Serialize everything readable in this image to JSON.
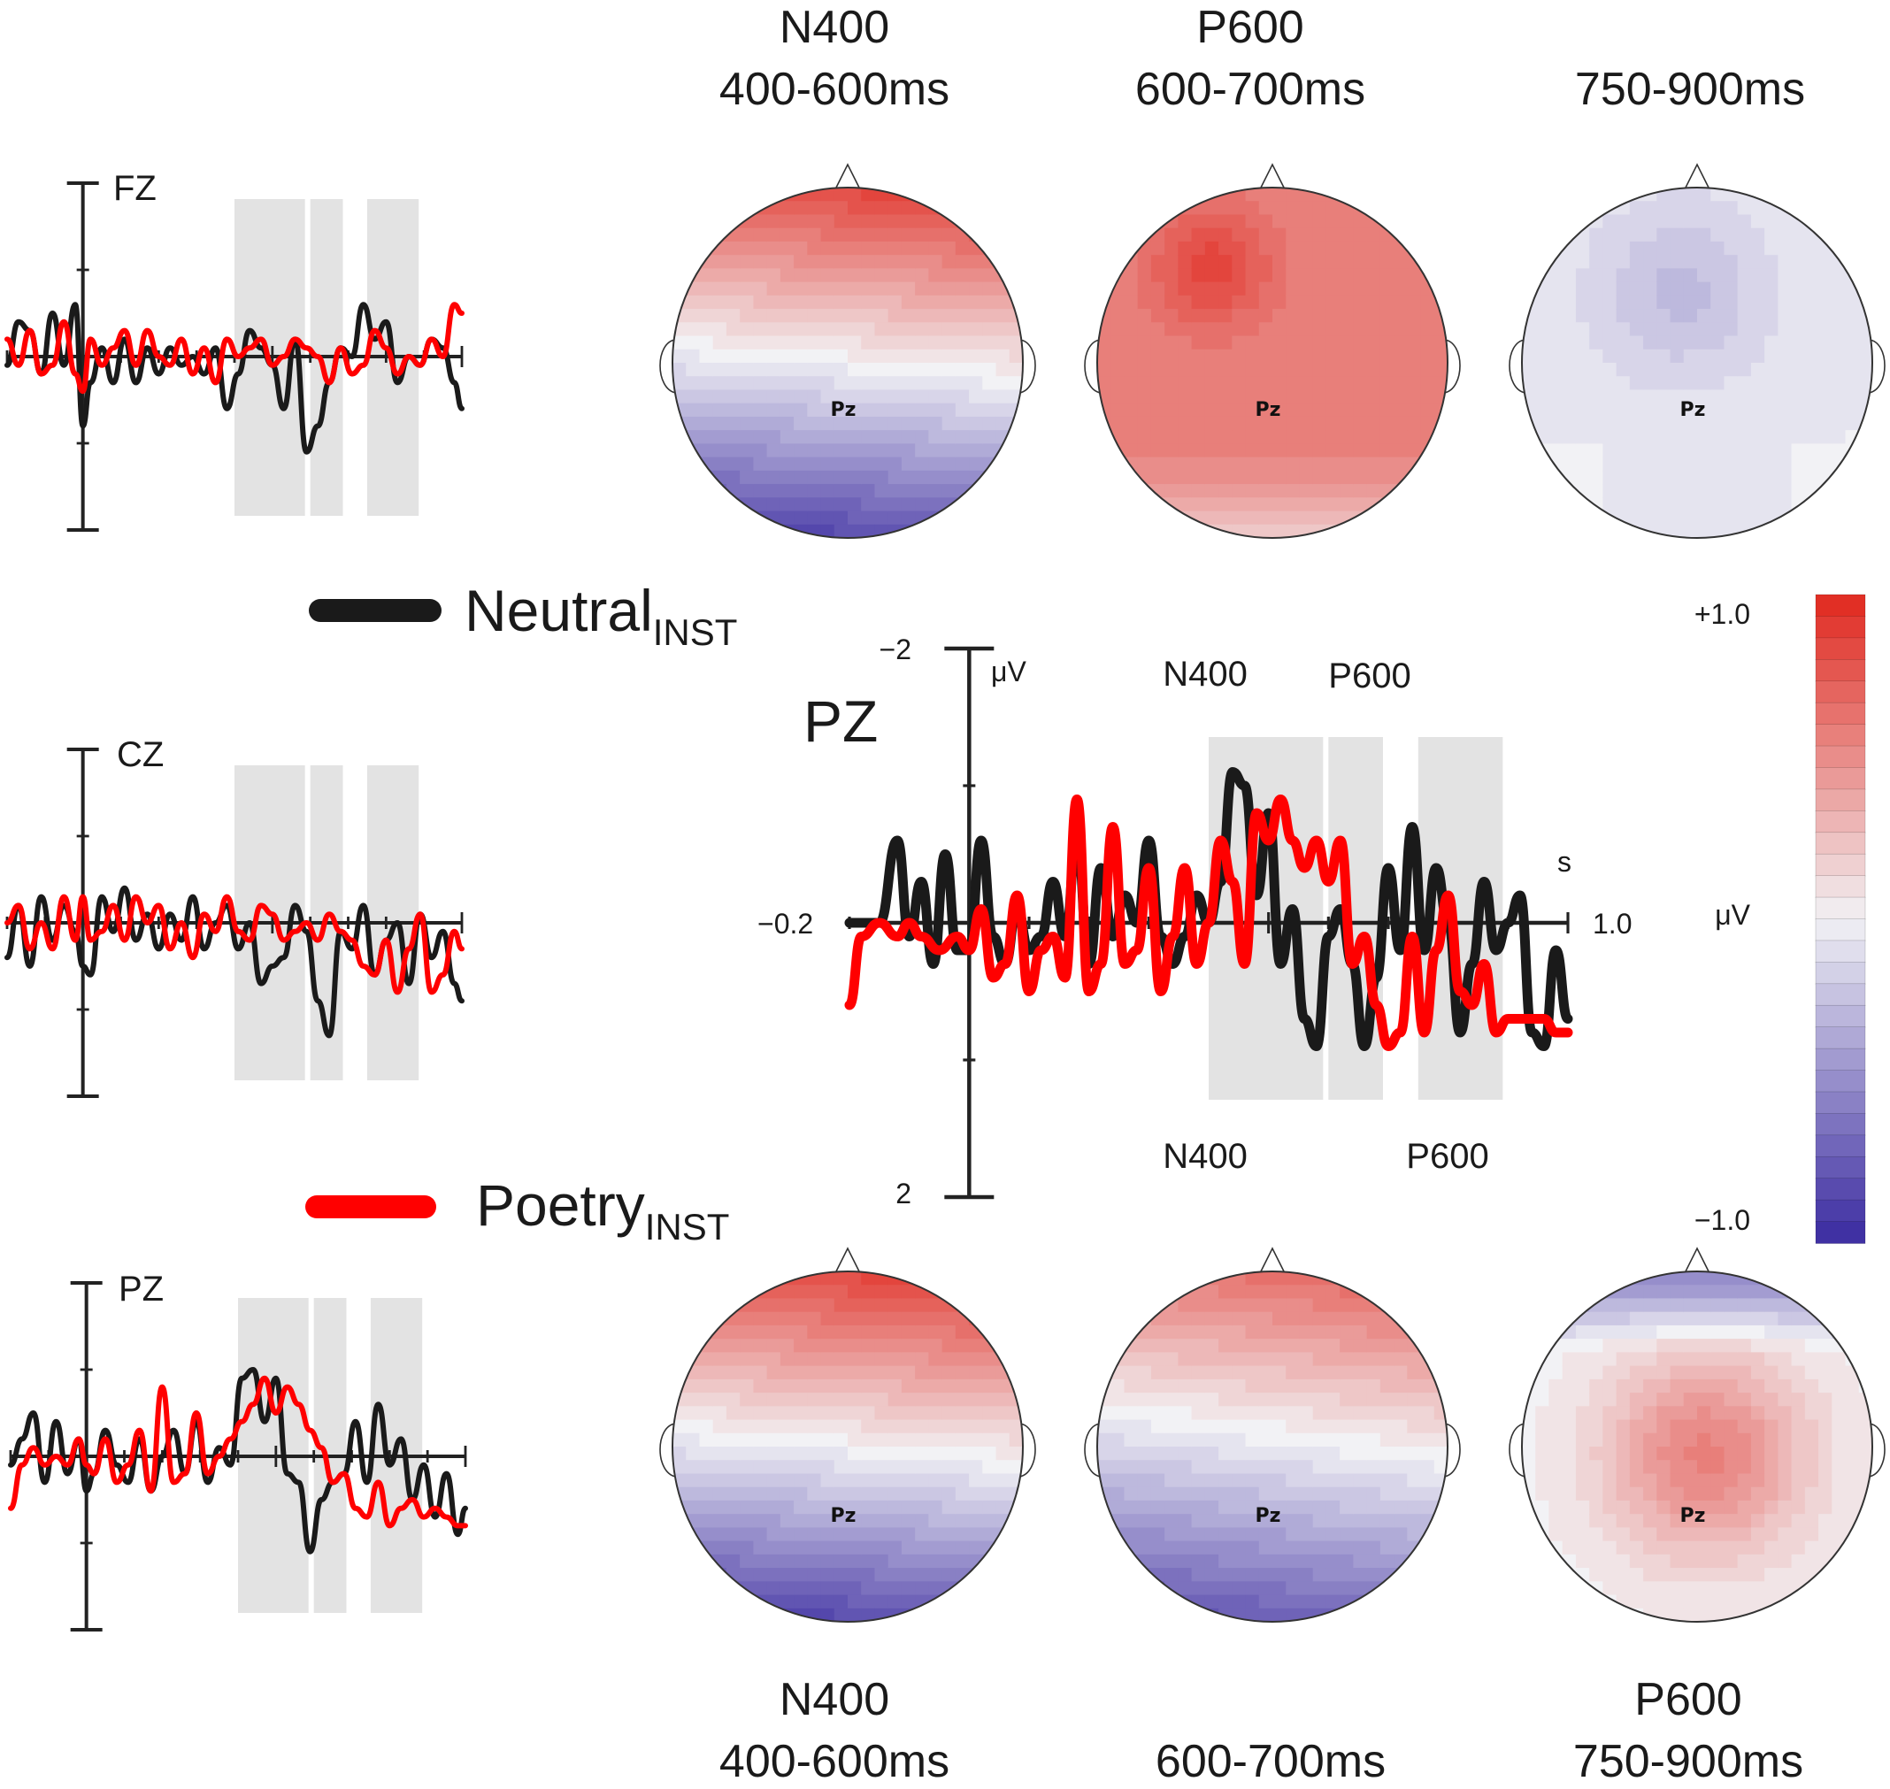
{
  "colors": {
    "neutral": "#1a1a1a",
    "poetry": "#ff0000",
    "window_shade": "#e3e3e3",
    "scale_pos": "#e0281e",
    "scale_neg": "#3a2aa0",
    "scale_mid": "#f2f2f5"
  },
  "top_maps": [
    {
      "component": "N400",
      "window": "400-600ms",
      "label_pz": "Pz",
      "map_type": "anterior-positive"
    },
    {
      "component": "P600",
      "window": "600-700ms",
      "label_pz": "Pz",
      "map_type": "broad-positive"
    },
    {
      "component": "",
      "window": "750-900ms",
      "label_pz": "Pz",
      "map_type": "weak-negative"
    }
  ],
  "bottom_maps": [
    {
      "component": "N400",
      "window": "400-600ms",
      "label_pz": "Pz",
      "map_type": "anterior-positive"
    },
    {
      "component": "",
      "window": "600-700ms",
      "label_pz": "Pz",
      "map_type": "mild-anterior"
    },
    {
      "component": "P600",
      "window": "750-900ms",
      "label_pz": "Pz",
      "map_type": "central-positive"
    }
  ],
  "legend": {
    "neutral": {
      "main": "Neutral",
      "sub": "INST"
    },
    "poetry": {
      "main": "Poetry",
      "sub": "INST"
    }
  },
  "colorbar": {
    "max_label": "+1.0",
    "min_label": "−1.0",
    "unit": "μV",
    "range": [
      -1.0,
      1.0
    ],
    "steps": 30
  },
  "chart_data": [
    {
      "type": "line",
      "name": "Pz (enlarged)",
      "title": "PZ",
      "xlabel": "s",
      "ylabel": "μV",
      "x_start_label": "−0.2",
      "x_end_label": "1.0",
      "y_top_label": "−2",
      "y_bottom_label": "2",
      "xlim": [
        -0.2,
        1.0
      ],
      "ylim": [
        -2,
        2
      ],
      "y_axis": "negative up",
      "windows": [
        [
          0.4,
          0.6
        ],
        [
          0.6,
          0.7
        ],
        [
          0.75,
          0.9
        ]
      ],
      "window_labels_top": [
        "N400",
        "P600"
      ],
      "window_labels_bottom": [
        "N400",
        "P600"
      ],
      "series": [
        {
          "name": "Neutral INST",
          "x": [
            -0.2,
            -0.15,
            -0.12,
            -0.1,
            -0.08,
            -0.06,
            -0.04,
            -0.02,
            0,
            0.02,
            0.04,
            0.06,
            0.08,
            0.1,
            0.12,
            0.14,
            0.16,
            0.18,
            0.2,
            0.22,
            0.24,
            0.26,
            0.28,
            0.3,
            0.32,
            0.34,
            0.36,
            0.38,
            0.4,
            0.42,
            0.44,
            0.46,
            0.48,
            0.5,
            0.52,
            0.54,
            0.56,
            0.58,
            0.6,
            0.62,
            0.64,
            0.66,
            0.68,
            0.7,
            0.72,
            0.74,
            0.76,
            0.78,
            0.8,
            0.82,
            0.84,
            0.86,
            0.88,
            0.9,
            0.92,
            0.94,
            0.96,
            0.98,
            1.0
          ],
          "values": [
            0,
            0,
            -0.6,
            0.1,
            -0.3,
            0.3,
            -0.5,
            0.2,
            0.2,
            -0.6,
            0.1,
            0.3,
            -0.1,
            0.2,
            0.1,
            -0.3,
            0.1,
            -0.6,
            0.3,
            -0.4,
            0.1,
            -0.2,
            0,
            -0.6,
            0.1,
            0.3,
            0.1,
            -0.2,
            0,
            -0.3,
            -1.1,
            -1.0,
            -0.2,
            -0.8,
            0.3,
            -0.1,
            0.7,
            0.9,
            0.1,
            -0.1,
            0.3,
            0.9,
            0.4,
            -0.4,
            0.2,
            -0.7,
            0.2,
            -0.4,
            0,
            0.8,
            0.3,
            -0.3,
            0.2,
            0,
            -0.2,
            0.8,
            0.9,
            0.2,
            0.7
          ]
        },
        {
          "name": "Poetry INST",
          "x": [
            -0.2,
            -0.18,
            -0.15,
            -0.12,
            -0.1,
            -0.08,
            -0.05,
            -0.02,
            0,
            0.02,
            0.04,
            0.06,
            0.08,
            0.1,
            0.12,
            0.14,
            0.16,
            0.18,
            0.2,
            0.22,
            0.24,
            0.26,
            0.28,
            0.3,
            0.32,
            0.34,
            0.36,
            0.38,
            0.4,
            0.42,
            0.44,
            0.46,
            0.48,
            0.5,
            0.52,
            0.54,
            0.56,
            0.58,
            0.6,
            0.62,
            0.64,
            0.66,
            0.68,
            0.7,
            0.72,
            0.74,
            0.76,
            0.78,
            0.8,
            0.82,
            0.84,
            0.86,
            0.88,
            0.9,
            0.92,
            0.94,
            0.96,
            0.98,
            1.0
          ],
          "values": [
            0.6,
            0.1,
            0.0,
            0.1,
            0.0,
            0.1,
            0.2,
            0.1,
            0.2,
            -0.1,
            0.4,
            0.3,
            -0.2,
            0.5,
            0.2,
            0.1,
            0.4,
            -0.9,
            0.5,
            0.3,
            -0.7,
            0.3,
            0.2,
            -0.4,
            0.5,
            0.1,
            -0.4,
            0.3,
            0.0,
            -0.6,
            -0.3,
            0.3,
            -0.8,
            -0.6,
            -0.9,
            -0.6,
            -0.4,
            -0.6,
            -0.3,
            -0.6,
            0.3,
            0.1,
            0.6,
            0.9,
            0.8,
            0.1,
            0.8,
            0.2,
            -0.2,
            0.5,
            0.6,
            0.3,
            0.8,
            0.7,
            0.7,
            0.7,
            0.7,
            0.8,
            0.8
          ]
        }
      ]
    },
    {
      "type": "line",
      "name": "Fz",
      "title": "FZ",
      "xlim": [
        -0.2,
        1.0
      ],
      "ylim": [
        -2,
        2
      ],
      "windows": [
        [
          0.4,
          0.6
        ],
        [
          0.6,
          0.7
        ],
        [
          0.75,
          0.9
        ]
      ],
      "series": [
        {
          "name": "Neutral INST",
          "x": [
            -0.2,
            -0.17,
            -0.14,
            -0.11,
            -0.08,
            -0.05,
            -0.02,
            0,
            0.02,
            0.05,
            0.08,
            0.11,
            0.14,
            0.17,
            0.2,
            0.23,
            0.26,
            0.29,
            0.32,
            0.35,
            0.38,
            0.41,
            0.44,
            0.47,
            0.5,
            0.53,
            0.56,
            0.59,
            0.62,
            0.65,
            0.68,
            0.71,
            0.74,
            0.77,
            0.8,
            0.83,
            0.86,
            0.89,
            0.92,
            0.95,
            0.98,
            1.0
          ],
          "values": [
            0.1,
            -0.4,
            -0.3,
            0.2,
            -0.5,
            0.1,
            -0.6,
            0.8,
            0.3,
            -0.1,
            0.3,
            -0.2,
            0.3,
            -0.1,
            0.2,
            -0.1,
            0.1,
            0.0,
            0.2,
            -0.1,
            0.6,
            0.2,
            -0.3,
            -0.1,
            0.1,
            0.6,
            -0.2,
            1.1,
            0.8,
            0.3,
            -0.1,
            0.0,
            -0.6,
            -0.2,
            -0.4,
            0.3,
            0.0,
            0.1,
            -0.2,
            -0.1,
            0.3,
            0.6
          ]
        },
        {
          "name": "Poetry INST",
          "x": [
            -0.2,
            -0.17,
            -0.14,
            -0.11,
            -0.08,
            -0.05,
            -0.02,
            0,
            0.02,
            0.05,
            0.08,
            0.11,
            0.14,
            0.17,
            0.2,
            0.23,
            0.26,
            0.29,
            0.32,
            0.35,
            0.38,
            0.41,
            0.44,
            0.47,
            0.5,
            0.53,
            0.56,
            0.59,
            0.62,
            0.65,
            0.68,
            0.71,
            0.74,
            0.77,
            0.8,
            0.83,
            0.86,
            0.89,
            0.92,
            0.95,
            0.98,
            1.0
          ],
          "values": [
            -0.2,
            0.1,
            -0.3,
            0.2,
            0.1,
            -0.4,
            0.2,
            0.4,
            -0.2,
            0.1,
            -0.1,
            -0.3,
            0.1,
            -0.3,
            0.0,
            0.1,
            -0.2,
            0.2,
            -0.1,
            0.3,
            -0.2,
            0.0,
            -0.1,
            -0.2,
            0.1,
            0.0,
            -0.2,
            -0.1,
            0.0,
            0.3,
            -0.1,
            0.2,
            0.1,
            -0.3,
            -0.1,
            0.2,
            0.0,
            0.1,
            -0.2,
            0.0,
            -0.6,
            -0.5
          ]
        }
      ]
    },
    {
      "type": "line",
      "name": "Cz",
      "title": "CZ",
      "xlim": [
        -0.2,
        1.0
      ],
      "ylim": [
        -2,
        2
      ],
      "windows": [
        [
          0.4,
          0.6
        ],
        [
          0.6,
          0.7
        ],
        [
          0.75,
          0.9
        ]
      ],
      "series": [
        {
          "name": "Neutral INST",
          "x": [
            -0.2,
            -0.17,
            -0.14,
            -0.11,
            -0.08,
            -0.05,
            -0.02,
            0,
            0.02,
            0.05,
            0.08,
            0.11,
            0.14,
            0.17,
            0.2,
            0.23,
            0.26,
            0.29,
            0.32,
            0.35,
            0.38,
            0.41,
            0.44,
            0.47,
            0.5,
            0.53,
            0.56,
            0.59,
            0.62,
            0.65,
            0.68,
            0.71,
            0.74,
            0.77,
            0.8,
            0.83,
            0.86,
            0.89,
            0.92,
            0.95,
            0.98,
            1.0
          ],
          "values": [
            0.4,
            -0.2,
            0.5,
            -0.3,
            0.2,
            -0.2,
            0.1,
            0.5,
            0.6,
            -0.3,
            0.1,
            -0.4,
            0.2,
            -0.1,
            0.3,
            -0.1,
            0.2,
            -0.3,
            0.3,
            0.0,
            -0.2,
            0.3,
            0.0,
            0.7,
            0.5,
            0.4,
            -0.2,
            0.1,
            0.9,
            1.3,
            0.1,
            0.3,
            -0.2,
            0.6,
            0.2,
            0.0,
            0.7,
            -0.1,
            0.4,
            0.1,
            0.7,
            0.9
          ]
        },
        {
          "name": "Poetry INST",
          "x": [
            -0.2,
            -0.17,
            -0.14,
            -0.11,
            -0.08,
            -0.05,
            -0.02,
            0,
            0.02,
            0.05,
            0.08,
            0.11,
            0.14,
            0.17,
            0.2,
            0.23,
            0.26,
            0.29,
            0.32,
            0.35,
            0.38,
            0.41,
            0.44,
            0.47,
            0.5,
            0.53,
            0.56,
            0.59,
            0.62,
            0.65,
            0.68,
            0.71,
            0.74,
            0.77,
            0.8,
            0.83,
            0.86,
            0.89,
            0.92,
            0.95,
            0.98,
            1.0
          ],
          "values": [
            0.0,
            -0.2,
            0.3,
            0.0,
            0.3,
            -0.3,
            0.2,
            -0.3,
            0.2,
            0.1,
            -0.2,
            0.2,
            -0.3,
            0.0,
            -0.2,
            0.3,
            0.0,
            0.4,
            -0.1,
            0.1,
            -0.3,
            0.1,
            0.2,
            -0.2,
            -0.1,
            0.2,
            0.1,
            0.0,
            0.2,
            -0.1,
            0.1,
            0.2,
            0.5,
            0.6,
            0.2,
            0.8,
            0.3,
            -0.1,
            0.8,
            0.6,
            0.1,
            0.3
          ]
        }
      ]
    },
    {
      "type": "line",
      "name": "Pz (small)",
      "title": "PZ",
      "xlim": [
        -0.2,
        1.0
      ],
      "ylim": [
        -2,
        2
      ],
      "windows": [
        [
          0.4,
          0.6
        ],
        [
          0.6,
          0.7
        ],
        [
          0.75,
          0.9
        ]
      ],
      "series": [
        {
          "name": "Neutral INST",
          "x": [
            -0.2,
            -0.17,
            -0.14,
            -0.11,
            -0.08,
            -0.05,
            -0.02,
            0,
            0.02,
            0.05,
            0.08,
            0.11,
            0.14,
            0.17,
            0.2,
            0.23,
            0.26,
            0.29,
            0.32,
            0.35,
            0.38,
            0.41,
            0.44,
            0.47,
            0.5,
            0.53,
            0.56,
            0.59,
            0.62,
            0.65,
            0.68,
            0.71,
            0.74,
            0.77,
            0.8,
            0.83,
            0.86,
            0.89,
            0.92,
            0.95,
            0.98,
            1.0
          ],
          "values": [
            0.1,
            -0.2,
            -0.5,
            0.3,
            -0.4,
            0.2,
            -0.2,
            0.4,
            0.2,
            -0.3,
            0.1,
            0.3,
            -0.2,
            0.4,
            0.0,
            -0.3,
            0.2,
            -0.4,
            0.3,
            -0.1,
            0.1,
            -0.9,
            -1.0,
            -0.4,
            -0.9,
            0.2,
            0.3,
            1.1,
            0.5,
            0.3,
            0.2,
            -0.4,
            0.3,
            -0.6,
            0.1,
            -0.2,
            0.5,
            0.1,
            0.7,
            0.2,
            0.9,
            0.6
          ]
        },
        {
          "name": "Poetry INST",
          "x": [
            -0.2,
            -0.17,
            -0.14,
            -0.11,
            -0.08,
            -0.05,
            -0.02,
            0,
            0.02,
            0.05,
            0.08,
            0.11,
            0.14,
            0.17,
            0.2,
            0.23,
            0.26,
            0.29,
            0.32,
            0.35,
            0.38,
            0.41,
            0.44,
            0.47,
            0.5,
            0.53,
            0.56,
            0.59,
            0.62,
            0.65,
            0.68,
            0.71,
            0.74,
            0.77,
            0.8,
            0.83,
            0.86,
            0.89,
            0.92,
            0.95,
            0.98,
            1.0
          ],
          "values": [
            0.6,
            0.1,
            -0.1,
            0.1,
            0.0,
            0.1,
            -0.2,
            0.1,
            0.2,
            -0.2,
            0.3,
            0.1,
            -0.3,
            0.4,
            -0.8,
            0.3,
            0.2,
            -0.5,
            0.2,
            0.0,
            -0.2,
            -0.4,
            -0.6,
            -0.9,
            -0.5,
            -0.8,
            -0.6,
            -0.3,
            -0.1,
            0.3,
            0.2,
            0.6,
            0.7,
            0.3,
            0.8,
            0.6,
            0.5,
            0.7,
            0.6,
            0.7,
            0.8,
            0.8
          ]
        }
      ]
    }
  ]
}
